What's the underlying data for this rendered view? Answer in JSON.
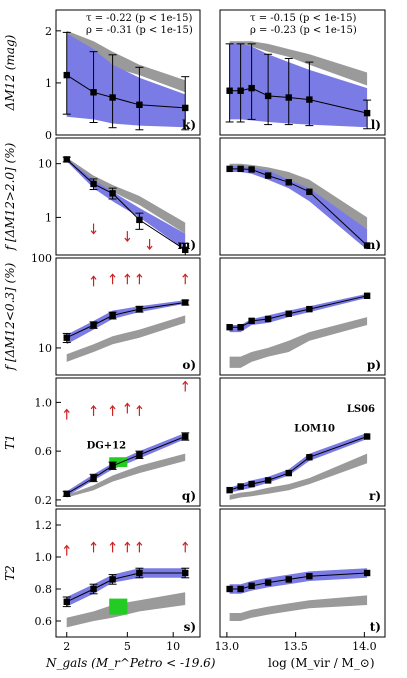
{
  "colors": {
    "blue_band": "#7b7be6",
    "light_blue": "#a3a3f2",
    "grey_band": "#9a9a9a",
    "green": "#22cc22",
    "red": "#cc2222",
    "black": "#000000"
  },
  "axes": {
    "left_xlabel": "N_gals (M_r^Petro < -19.6)",
    "right_xlabel": "log (M_vir / M_⊙)",
    "left_xticks": [
      "2",
      "5",
      "10"
    ],
    "right_xticks": [
      "13.0",
      "13.5",
      "14.0"
    ]
  },
  "chart_data": [
    {
      "type": "area",
      "panel": "k",
      "column": "left",
      "ylabel": "ΔM12 (mag)",
      "ylim": [
        0,
        2.4
      ],
      "yticks": [
        "0",
        "1",
        "2"
      ],
      "annotations": [
        "τ = -0.22 (p < 1e-15)",
        "ρ = -0.31 (p < 1e-15)"
      ],
      "x": [
        2,
        3,
        4,
        6,
        12
      ],
      "series": [
        {
          "values": [
            1.15,
            0.82,
            0.72,
            0.58,
            0.52
          ],
          "err_hi": [
            0.82,
            0.78,
            0.82,
            0.72,
            0.6
          ],
          "err_lo": [
            0.75,
            0.58,
            0.58,
            0.48,
            0.42
          ]
        }
      ],
      "blue_band": {
        "low": [
          0.35,
          0.3,
          0.22,
          0.18,
          0.15
        ],
        "high": [
          1.95,
          1.65,
          1.35,
          1.1,
          0.78
        ]
      },
      "grey_band": {
        "low": [
          1.85,
          1.55,
          1.3,
          1.15,
          0.82
        ],
        "high": [
          2.0,
          1.8,
          1.6,
          1.35,
          1.05
        ]
      }
    },
    {
      "type": "area",
      "panel": "l",
      "column": "right",
      "ylim": [
        0,
        2.4
      ],
      "annotations": [
        "τ = -0.15 (p < 1e-15)",
        "ρ = -0.23 (p < 1e-15)"
      ],
      "x": [
        13.02,
        13.1,
        13.18,
        13.3,
        13.45,
        13.6,
        14.02
      ],
      "series": [
        {
          "values": [
            0.85,
            0.85,
            0.9,
            0.75,
            0.72,
            0.68,
            0.42
          ],
          "err_hi": [
            0.9,
            0.9,
            0.85,
            0.8,
            0.75,
            0.72,
            0.25
          ],
          "err_lo": [
            0.6,
            0.6,
            0.6,
            0.55,
            0.52,
            0.5,
            0.3
          ]
        }
      ],
      "blue_band": {
        "low": [
          0.3,
          0.3,
          0.28,
          0.25,
          0.22,
          0.2,
          0.15
        ],
        "high": [
          1.75,
          1.75,
          1.7,
          1.55,
          1.4,
          1.25,
          0.9
        ]
      },
      "grey_band": {
        "low": [
          1.7,
          1.7,
          1.7,
          1.6,
          1.5,
          1.35,
          0.95
        ],
        "high": [
          1.8,
          1.8,
          1.8,
          1.75,
          1.65,
          1.55,
          1.2
        ]
      }
    },
    {
      "type": "area",
      "panel": "m",
      "column": "left",
      "ylabel": "f [ΔM12>2.0]   (%)",
      "ylog": true,
      "ylim": [
        0.2,
        30
      ],
      "yticks": [
        "1",
        "10"
      ],
      "x": [
        2,
        3,
        4,
        6,
        12
      ],
      "series": [
        {
          "values": [
            12,
            4.2,
            2.8,
            0.9,
            0.25
          ],
          "err_hi": [
            1.2,
            1.0,
            0.7,
            0.3,
            0.08
          ],
          "err_lo": [
            1.2,
            0.9,
            0.6,
            0.3,
            0.08
          ]
        }
      ],
      "blue_band": {
        "low": [
          11,
          3.5,
          2.0,
          1.0,
          0.25
        ],
        "high": [
          12.5,
          5.0,
          3.0,
          1.5,
          0.5
        ]
      },
      "grey_band": {
        "low": [
          11.5,
          4.5,
          3.0,
          1.7,
          0.5
        ],
        "high": [
          13,
          6.0,
          4.0,
          2.5,
          0.8
        ]
      },
      "red_limits": [
        [
          3,
          0.62
        ],
        [
          5,
          0.45
        ],
        [
          7,
          0.32
        ]
      ]
    },
    {
      "type": "area",
      "panel": "n",
      "column": "right",
      "ylog": true,
      "ylim": [
        0.2,
        30
      ],
      "x": [
        13.02,
        13.1,
        13.18,
        13.3,
        13.45,
        13.6,
        14.02
      ],
      "series": [
        {
          "values": [
            8.0,
            8.0,
            7.8,
            6.0,
            4.5,
            3.0,
            0.3
          ]
        }
      ],
      "blue_band": {
        "low": [
          7.0,
          7.0,
          6.5,
          5.0,
          3.5,
          2.0,
          0.25
        ],
        "high": [
          9.0,
          9.0,
          8.5,
          7.5,
          5.0,
          3.5,
          0.6
        ]
      },
      "grey_band": {
        "low": [
          7.5,
          7.5,
          7.0,
          6.0,
          4.5,
          3.0,
          0.6
        ],
        "high": [
          10.0,
          10.0,
          9.5,
          8.5,
          7.0,
          5.0,
          1.0
        ]
      }
    },
    {
      "type": "area",
      "panel": "o",
      "column": "left",
      "ylabel": "f [ΔM12<0.3]   (%)",
      "ylog": true,
      "ylim": [
        5,
        100
      ],
      "yticks": [
        "10",
        "100"
      ],
      "x": [
        2,
        3,
        4,
        6,
        12
      ],
      "series": [
        {
          "values": [
            13,
            18,
            23,
            27,
            32
          ],
          "err_hi": [
            1.5,
            1.5,
            2,
            2,
            2
          ],
          "err_lo": [
            1.5,
            1.5,
            2,
            2,
            2
          ]
        }
      ],
      "blue_band": {
        "low": [
          11,
          16,
          21,
          25,
          31
        ],
        "high": [
          14,
          20,
          26,
          29,
          34
        ]
      },
      "grey_band": {
        "low": [
          7,
          9,
          11,
          13,
          19
        ],
        "high": [
          8.5,
          11,
          13.5,
          16,
          23
        ]
      },
      "red_limits": [
        [
          3,
          55
        ],
        [
          4,
          58
        ],
        [
          5,
          58
        ],
        [
          6,
          58
        ],
        [
          12,
          58
        ]
      ]
    },
    {
      "type": "area",
      "panel": "p",
      "column": "right",
      "ylog": true,
      "ylim": [
        5,
        100
      ],
      "x": [
        13.02,
        13.1,
        13.18,
        13.3,
        13.45,
        13.6,
        14.02
      ],
      "series": [
        {
          "values": [
            17,
            17,
            20,
            21,
            24,
            27,
            38
          ]
        }
      ],
      "blue_band": {
        "low": [
          15,
          15,
          18,
          19,
          22,
          25,
          36
        ],
        "high": [
          18,
          18,
          21,
          23,
          26,
          29,
          40
        ]
      },
      "grey_band": {
        "low": [
          6,
          6,
          7,
          8,
          9,
          12,
          18
        ],
        "high": [
          8,
          8,
          9,
          10,
          12,
          15,
          22
        ]
      }
    },
    {
      "type": "area",
      "panel": "q",
      "column": "left",
      "ylabel": "T1",
      "ylim": [
        0.15,
        1.2
      ],
      "yticks": [
        "0.2",
        "0.6",
        "1.0"
      ],
      "annotations": [
        "DG+12"
      ],
      "x": [
        2,
        3,
        4,
        6,
        12
      ],
      "series": [
        {
          "values": [
            0.25,
            0.38,
            0.48,
            0.57,
            0.72
          ],
          "err_hi": [
            0.02,
            0.03,
            0.03,
            0.03,
            0.03
          ],
          "err_lo": [
            0.02,
            0.03,
            0.03,
            0.03,
            0.03
          ]
        }
      ],
      "blue_band": {
        "low": [
          0.23,
          0.36,
          0.45,
          0.54,
          0.7
        ],
        "high": [
          0.27,
          0.41,
          0.5,
          0.6,
          0.75
        ]
      },
      "grey_band": {
        "low": [
          0.22,
          0.28,
          0.35,
          0.42,
          0.52
        ],
        "high": [
          0.24,
          0.32,
          0.4,
          0.48,
          0.58
        ]
      },
      "red_limits": [
        [
          2,
          0.9
        ],
        [
          3,
          0.93
        ],
        [
          4,
          0.93
        ],
        [
          5,
          0.95
        ],
        [
          6,
          0.93
        ],
        [
          12,
          1.13
        ]
      ],
      "green_box": {
        "x": [
          3.8,
          5.0
        ],
        "y": [
          0.47,
          0.55
        ]
      }
    },
    {
      "type": "area",
      "panel": "r",
      "column": "right",
      "ylim": [
        0.15,
        1.2
      ],
      "annotations": [
        "LS06",
        "LOM10"
      ],
      "x": [
        13.02,
        13.1,
        13.18,
        13.3,
        13.45,
        13.6,
        14.02
      ],
      "series": [
        {
          "values": [
            0.28,
            0.31,
            0.33,
            0.36,
            0.42,
            0.55,
            0.72
          ]
        }
      ],
      "blue_band": {
        "low": [
          0.26,
          0.28,
          0.3,
          0.34,
          0.4,
          0.52,
          0.7
        ],
        "high": [
          0.3,
          0.33,
          0.36,
          0.39,
          0.45,
          0.58,
          0.75
        ]
      },
      "grey_band": {
        "low": [
          0.2,
          0.22,
          0.23,
          0.25,
          0.28,
          0.33,
          0.5
        ],
        "high": [
          0.24,
          0.26,
          0.27,
          0.3,
          0.33,
          0.38,
          0.58
        ]
      }
    },
    {
      "type": "area",
      "panel": "s",
      "column": "left",
      "ylabel": "T2",
      "ylim": [
        0.5,
        1.3
      ],
      "yticks": [
        "0.6",
        "0.8",
        "1.0",
        "1.2"
      ],
      "x": [
        2,
        3,
        4,
        6,
        12
      ],
      "series": [
        {
          "values": [
            0.72,
            0.8,
            0.86,
            0.9,
            0.9
          ],
          "err_hi": [
            0.03,
            0.03,
            0.03,
            0.03,
            0.03
          ],
          "err_lo": [
            0.03,
            0.03,
            0.03,
            0.03,
            0.03
          ]
        }
      ],
      "blue_band": {
        "low": [
          0.69,
          0.77,
          0.84,
          0.87,
          0.87
        ],
        "high": [
          0.75,
          0.83,
          0.89,
          0.93,
          0.93
        ]
      },
      "grey_band": {
        "low": [
          0.56,
          0.6,
          0.62,
          0.66,
          0.7
        ],
        "high": [
          0.62,
          0.66,
          0.7,
          0.73,
          0.78
        ]
      },
      "red_limits": [
        [
          2,
          1.04
        ],
        [
          3,
          1.06
        ],
        [
          4,
          1.06
        ],
        [
          5,
          1.06
        ],
        [
          6,
          1.06
        ],
        [
          12,
          1.06
        ]
      ],
      "green_box": {
        "x": [
          3.8,
          5.0
        ],
        "y": [
          0.64,
          0.74
        ]
      }
    },
    {
      "type": "area",
      "panel": "t",
      "column": "right",
      "ylim": [
        0.5,
        1.3
      ],
      "x": [
        13.02,
        13.1,
        13.18,
        13.3,
        13.45,
        13.6,
        14.02
      ],
      "series": [
        {
          "values": [
            0.8,
            0.8,
            0.82,
            0.84,
            0.86,
            0.88,
            0.9
          ]
        }
      ],
      "blue_band": {
        "low": [
          0.77,
          0.77,
          0.79,
          0.81,
          0.83,
          0.85,
          0.87
        ],
        "high": [
          0.83,
          0.83,
          0.85,
          0.87,
          0.89,
          0.91,
          0.93
        ]
      },
      "grey_band": {
        "low": [
          0.6,
          0.6,
          0.62,
          0.64,
          0.66,
          0.68,
          0.7
        ],
        "high": [
          0.65,
          0.65,
          0.67,
          0.69,
          0.71,
          0.73,
          0.76
        ]
      }
    }
  ]
}
